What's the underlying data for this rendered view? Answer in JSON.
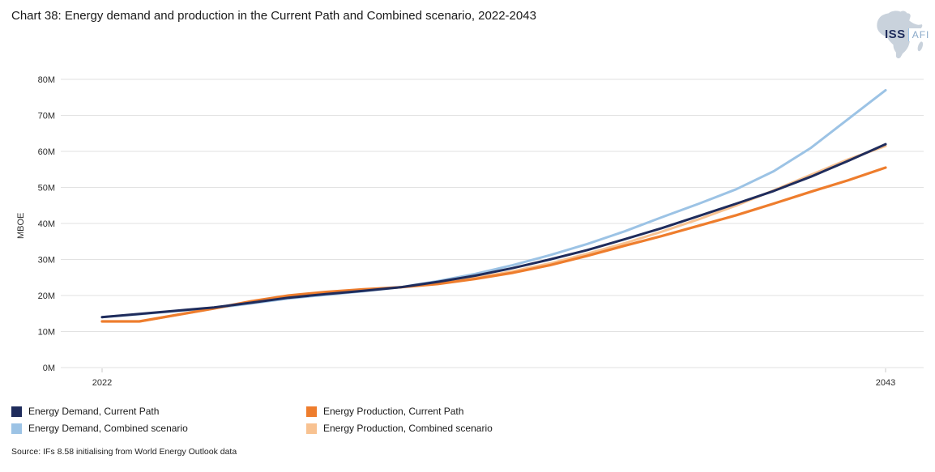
{
  "header": {
    "title": "Chart 38: Energy demand and production in the Current Path and Combined scenario, 2022-2043"
  },
  "logo": {
    "iss": "ISS",
    "afi": "AFI",
    "map_color": "#c9d2dc",
    "iss_color": "#1f2c5c",
    "afi_color": "#8aa9c9"
  },
  "footer": {
    "source": "Source: IFs 8.58 initialising from World Energy Outlook data"
  },
  "chart_data": {
    "type": "line",
    "title": "Chart 38: Energy demand and production in the Current Path and Combined scenario, 2022-2043",
    "xlabel": "",
    "ylabel": "MBOE",
    "ylim": [
      0,
      80
    ],
    "x_range": [
      2022,
      2043
    ],
    "grid": "horizontal",
    "legend_position": "bottom-left, two columns",
    "y_ticks": [
      {
        "value": 0,
        "label": "0M"
      },
      {
        "value": 10,
        "label": "10M"
      },
      {
        "value": 20,
        "label": "20M"
      },
      {
        "value": 30,
        "label": "30M"
      },
      {
        "value": 40,
        "label": "40M"
      },
      {
        "value": 50,
        "label": "50M"
      },
      {
        "value": 60,
        "label": "60M"
      },
      {
        "value": 70,
        "label": "70M"
      },
      {
        "value": 80,
        "label": "80M"
      }
    ],
    "x_ticks": [
      {
        "value": 2022,
        "label": "2022"
      },
      {
        "value": 2043,
        "label": "2043"
      }
    ],
    "years": [
      2022,
      2023,
      2024,
      2025,
      2026,
      2027,
      2028,
      2029,
      2030,
      2031,
      2032,
      2033,
      2034,
      2035,
      2036,
      2037,
      2038,
      2039,
      2040,
      2041,
      2042,
      2043
    ],
    "series": [
      {
        "id": "energy-demand-current-path",
        "label": "Energy Demand, Current Path",
        "color": "#1f2c5c",
        "width": 3,
        "values": [
          14.0,
          14.9,
          15.8,
          16.7,
          18.0,
          19.4,
          20.4,
          21.3,
          22.3,
          23.8,
          25.5,
          27.6,
          30.0,
          32.6,
          35.6,
          38.7,
          42.1,
          45.5,
          49.0,
          53.0,
          57.4,
          62.0
        ]
      },
      {
        "id": "energy-demand-combined-scenario",
        "label": "Energy Demand, Combined scenario",
        "color": "#9cc3e5",
        "width": 3,
        "values": [
          14.0,
          14.8,
          15.7,
          16.5,
          17.8,
          19.2,
          20.2,
          21.2,
          22.3,
          24.0,
          26.0,
          28.4,
          31.2,
          34.3,
          37.8,
          41.7,
          45.5,
          49.5,
          54.5,
          61.0,
          69.0,
          77.0
        ]
      },
      {
        "id": "energy-production-current-path",
        "label": "Energy Production, Current Path",
        "color": "#ee7d2d",
        "width": 3.2,
        "values": [
          12.8,
          12.8,
          14.6,
          16.4,
          18.4,
          20.0,
          21.0,
          21.7,
          22.3,
          23.2,
          24.6,
          26.3,
          28.4,
          31.0,
          33.8,
          36.5,
          39.4,
          42.3,
          45.5,
          48.8,
          52.0,
          55.5
        ]
      },
      {
        "id": "energy-production-combined-scenario",
        "label": "Energy Production, Combined scenario",
        "color": "#f8c291",
        "width": 3,
        "values": [
          12.8,
          12.8,
          14.6,
          16.4,
          18.3,
          19.9,
          20.9,
          21.6,
          22.3,
          23.4,
          24.9,
          26.7,
          28.9,
          31.6,
          34.5,
          37.7,
          41.2,
          45.0,
          49.2,
          53.5,
          57.8,
          61.5
        ]
      }
    ],
    "draw_order": [
      1,
      3,
      2,
      0
    ]
  }
}
